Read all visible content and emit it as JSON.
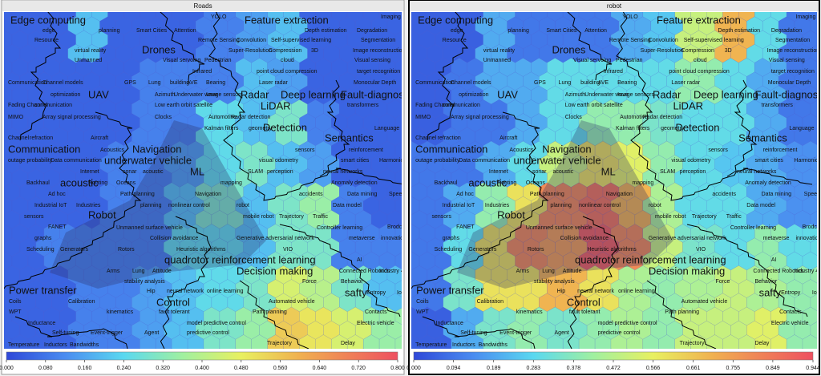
{
  "chart_data": [
    {
      "type": "heatmap",
      "title": "Roads",
      "zlim": [
        0,
        0.8
      ],
      "cticks": [
        {
          "value": 0,
          "label": "0.000"
        },
        {
          "value": 0.08,
          "label": "0.080"
        },
        {
          "value": 0.16,
          "label": "0.160"
        },
        {
          "value": 0.24,
          "label": "0.240"
        },
        {
          "value": 0.32,
          "label": "0.320"
        },
        {
          "value": 0.4,
          "label": "0.400"
        },
        {
          "value": 0.48,
          "label": "0.480"
        },
        {
          "value": 0.56,
          "label": "0.560"
        },
        {
          "value": 0.64,
          "label": "0.640"
        },
        {
          "value": 0.72,
          "label": "0.720"
        },
        {
          "value": 0.8,
          "label": "0.800"
        }
      ],
      "values": [
        [
          0.05,
          0.05,
          0.2,
          0.05,
          0.05,
          0.05,
          0.1,
          0.15,
          0.2,
          0.05,
          0.05,
          0.05
        ],
        [
          0.05,
          0.05,
          0.05,
          0.05,
          0.1,
          0.1,
          0.1,
          0.2,
          0.15,
          0.05,
          0.05,
          0.05
        ],
        [
          0.05,
          0.05,
          0.05,
          0.05,
          0.1,
          0.1,
          0.25,
          0.2,
          0.3,
          0.1,
          0.05,
          0.05
        ],
        [
          0.05,
          0.05,
          0.05,
          0.1,
          0.1,
          0.15,
          0.25,
          0.3,
          0.2,
          0.15,
          0.05,
          0.05
        ],
        [
          0.05,
          0.05,
          0.05,
          0.1,
          0.1,
          0.2,
          0.3,
          0.2,
          0.3,
          0.35,
          0.1,
          0.05
        ],
        [
          0.05,
          0.1,
          0.1,
          0.1,
          0.1,
          0.25,
          0.25,
          0.2,
          0.3,
          0.3,
          0.1,
          0.1
        ],
        [
          0.05,
          0.05,
          0.1,
          0.1,
          0.15,
          0.2,
          0.25,
          0.3,
          0.45,
          0.4,
          0.3,
          0.2
        ],
        [
          0.05,
          0.05,
          0.1,
          0.1,
          0.15,
          0.2,
          0.3,
          0.35,
          0.55,
          0.5,
          0.45,
          0.35
        ]
      ]
    },
    {
      "type": "heatmap",
      "title": "robot",
      "zlim": [
        0,
        0.944
      ],
      "cticks": [
        {
          "value": 0,
          "label": "0.000"
        },
        {
          "value": 0.094,
          "label": "0.094"
        },
        {
          "value": 0.189,
          "label": "0.189"
        },
        {
          "value": 0.283,
          "label": "0.283"
        },
        {
          "value": 0.378,
          "label": "0.378"
        },
        {
          "value": 0.472,
          "label": "0.472"
        },
        {
          "value": 0.566,
          "label": "0.566"
        },
        {
          "value": 0.661,
          "label": "0.661"
        },
        {
          "value": 0.755,
          "label": "0.755"
        },
        {
          "value": 0.849,
          "label": "0.849"
        },
        {
          "value": 0.944,
          "label": "0.944"
        }
      ],
      "values": [
        [
          0.05,
          0.05,
          0.2,
          0.1,
          0.1,
          0.1,
          0.2,
          0.25,
          0.5,
          0.7,
          0.3,
          0.1
        ],
        [
          0.05,
          0.1,
          0.2,
          0.2,
          0.3,
          0.3,
          0.3,
          0.3,
          0.4,
          0.3,
          0.2,
          0.1
        ],
        [
          0.05,
          0.1,
          0.1,
          0.2,
          0.3,
          0.4,
          0.4,
          0.35,
          0.3,
          0.3,
          0.2,
          0.1
        ],
        [
          0.1,
          0.1,
          0.2,
          0.3,
          0.5,
          0.6,
          0.55,
          0.4,
          0.3,
          0.25,
          0.2,
          0.15
        ],
        [
          0.1,
          0.2,
          0.4,
          0.6,
          0.8,
          0.85,
          0.7,
          0.45,
          0.3,
          0.3,
          0.2,
          0.15
        ],
        [
          0.1,
          0.3,
          0.6,
          0.8,
          0.75,
          0.9,
          0.8,
          0.5,
          0.35,
          0.3,
          0.4,
          0.3
        ],
        [
          0.1,
          0.35,
          0.6,
          0.6,
          0.7,
          0.6,
          0.45,
          0.4,
          0.45,
          0.5,
          0.45,
          0.4
        ],
        [
          0.05,
          0.2,
          0.35,
          0.4,
          0.35,
          0.4,
          0.45,
          0.4,
          0.5,
          0.5,
          0.55,
          0.4
        ]
      ]
    }
  ],
  "map_labels": [
    "Edge computing",
    "Feature extraction",
    "YOLO",
    "Imaging",
    "edge",
    "planning",
    "Smart Cities",
    "Attention",
    "Depth estimation",
    "Degradation",
    "Resource",
    "Remote Sensing",
    "Convolution",
    "Self-supervised learning",
    "Segmentation",
    "virtual reality",
    "Drones",
    "Super-Resolution",
    "Compression",
    "3D",
    "Image reconstruction",
    "Unmanned",
    "Visual servoing",
    "Pedestrian",
    "cloud",
    "Visual sensing",
    "Infrared",
    "point cloud compression",
    "target recognition",
    "Communication",
    "Channel models",
    "GPS",
    "Lung",
    "building",
    "AVE",
    "Bearing",
    "Laser radar",
    "Monocular Depth",
    "optimization",
    "UAV",
    "Azimuth",
    "Underwater wave",
    "Image sensors",
    "Radar",
    "Deep learning",
    "Fault-diagnosis",
    "Fading Channel",
    "communication",
    "Low earth orbit satellite",
    "LiDAR",
    "transformers",
    "MIMO",
    "Array signal processing",
    "Clocks",
    "Automotive",
    "Radar detection",
    "Kalman filters",
    "geometry",
    "Detection",
    "Language",
    "Channel",
    "refraction",
    "Aircraft",
    "Semantics",
    "Communication",
    "Acoustics",
    "Navigation",
    "sensors",
    "reinforcement",
    "outage probability",
    "Data communication",
    "underwater vehicle",
    "visual odometry",
    "smart cities",
    "Harmonic analysis",
    "Internet",
    "sonar",
    "acoustic",
    "ML",
    "SLAM",
    "perception",
    "neural networks",
    "Backhaul",
    "acoustic",
    "Routing",
    "Oceans",
    "mapping",
    "Anomaly detection",
    "Ad hoc",
    "Path planning",
    "Navigation",
    "accidents",
    "Data mining",
    "Speech",
    "Industrial IoT",
    "Industries",
    "planning",
    "nonlinear control",
    "robot",
    "Data model",
    "Robot",
    "sensors",
    "mobile robot",
    "Trajectory",
    "Traffic",
    "FANET",
    "Unmanned surface vehicle",
    "Controller learning",
    "Brodchain",
    "graphs",
    "Collision avoidance",
    "Generative adversarial network",
    "metaverse",
    "innovation",
    "Scheduling",
    "Generators",
    "Rotors",
    "Heuristic algorithms",
    "VIO",
    "quadrotor reinforcement learning",
    "AI",
    "Arms",
    "Lung",
    "Attitude",
    "Decision making",
    "Connected Robotics",
    "Industry 4.0",
    "stability analysis",
    "Force",
    "Behavior",
    "Power transfer",
    "Hip",
    "neural network",
    "online learning",
    "safty",
    "Entropy",
    "IoT",
    "Coils",
    "Calibration",
    "Control",
    "Automated vehicle",
    "WPT",
    "kinematics",
    "fault tolerant",
    "Path planning",
    "Contacts",
    "Inductance",
    "model predictive control",
    "Electric vehicle",
    "Self-tuning",
    "Event-trigger",
    "Agent",
    "predictive control",
    "Trajectory",
    "Delay",
    "Temperature",
    "Inductors",
    "Bandwidths"
  ]
}
